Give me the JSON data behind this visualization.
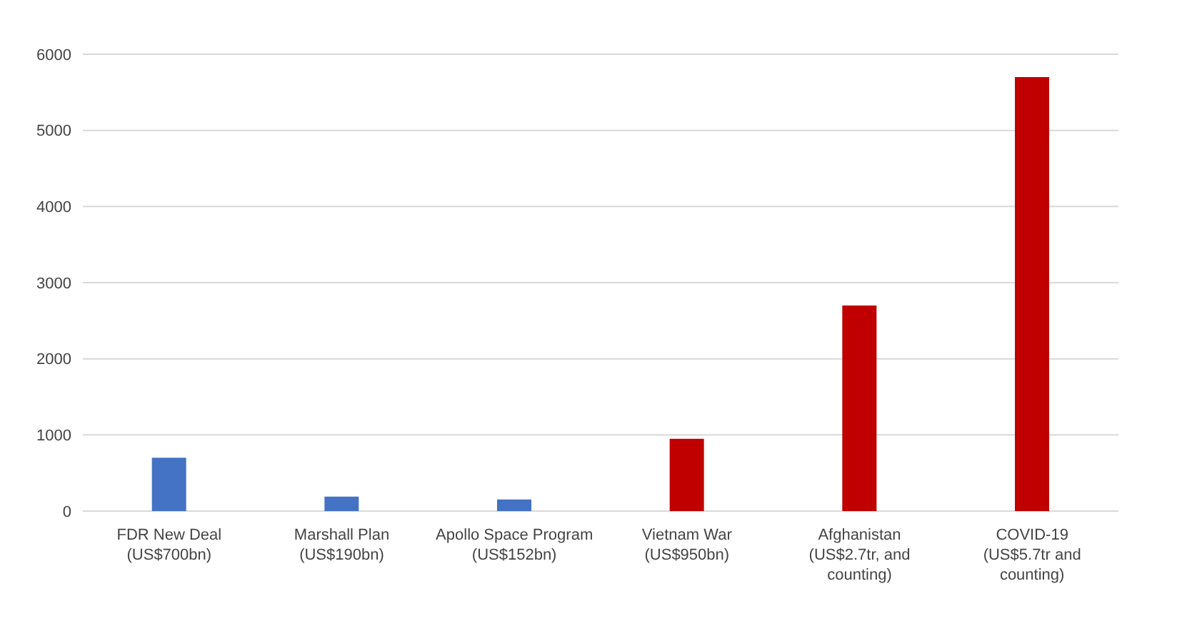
{
  "chart_data": {
    "type": "bar",
    "categories": [
      "FDR New Deal\n(US$700bn)",
      "Marshall Plan\n(US$190bn)",
      "Apollo Space Program\n(US$152bn)",
      "Vietnam War\n(US$950bn)",
      "Afghanistan\n(US$2.7tr, and\ncounting)",
      "COVID-19\n(US$5.7tr and\ncounting)"
    ],
    "values": [
      700,
      190,
      152,
      950,
      2700,
      5700
    ],
    "colors": [
      "#4472c4",
      "#4472c4",
      "#4472c4",
      "#c00000",
      "#c00000",
      "#c00000"
    ],
    "ylim": [
      0,
      6000
    ],
    "yticks": [
      0,
      1000,
      2000,
      3000,
      4000,
      5000,
      6000
    ],
    "grid": "y"
  }
}
